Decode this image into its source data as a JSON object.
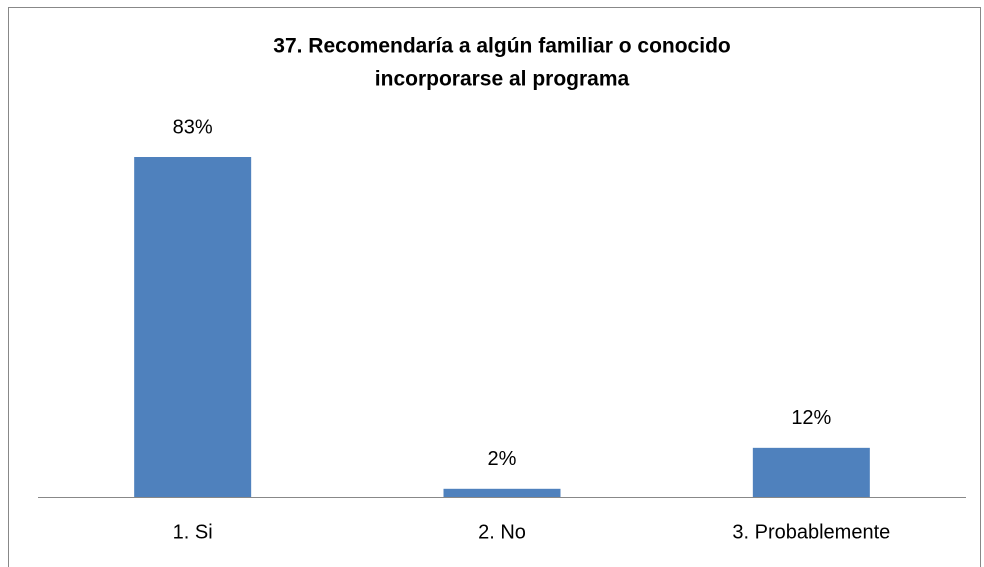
{
  "chart_data": {
    "type": "bar",
    "title": [
      "37. Recomendaría a algún familiar o conocido",
      "incorporarse al programa"
    ],
    "categories": [
      "1. Si",
      "2. No",
      "3. Probablemente"
    ],
    "values": [
      83,
      2,
      12
    ],
    "value_labels": [
      "83%",
      "2%",
      "12%"
    ],
    "color": "#4f81bd"
  }
}
